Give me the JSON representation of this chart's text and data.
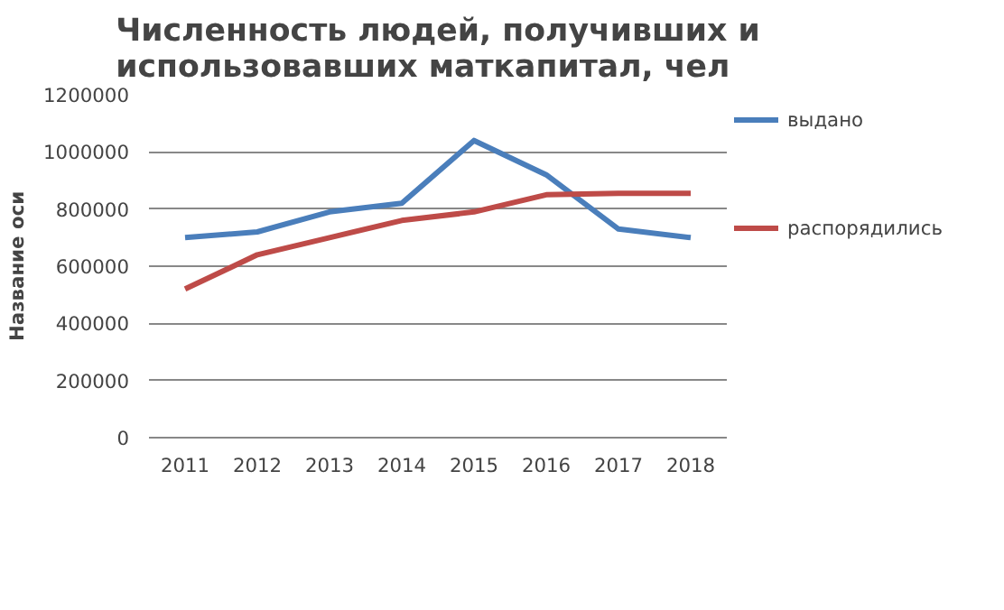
{
  "chart_data": {
    "type": "line",
    "title": "Численность людей, получивших и использовавших маткапитал, чел",
    "ylabel": "Название оси",
    "categories": [
      "2011",
      "2012",
      "2013",
      "2014",
      "2015",
      "2016",
      "2017",
      "2018"
    ],
    "series": [
      {
        "name": "выдано",
        "color": "#4a7ebb",
        "values": [
          700000,
          720000,
          790000,
          820000,
          1040000,
          920000,
          730000,
          700000
        ]
      },
      {
        "name": "распорядились",
        "color": "#be4b48",
        "values": [
          520000,
          640000,
          700000,
          760000,
          790000,
          850000,
          855000,
          855000
        ]
      }
    ],
    "ylim": [
      0,
      1200000
    ],
    "yticks": [
      0,
      200000,
      400000,
      600000,
      800000,
      1000000,
      1200000
    ],
    "grid": "y",
    "legend": "right",
    "marker": "none",
    "line_style": "solid"
  }
}
